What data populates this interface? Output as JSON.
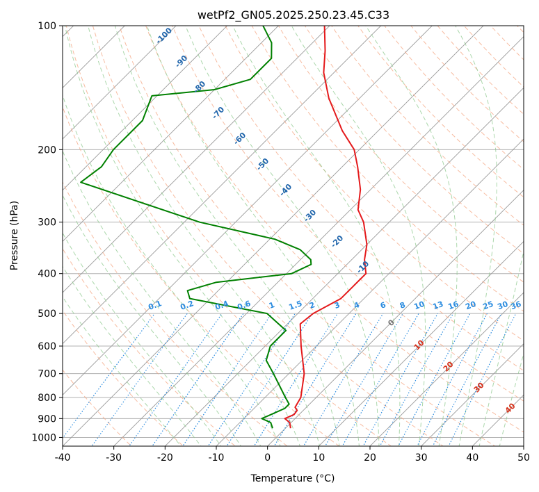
{
  "chart_data": {
    "type": "line",
    "title": "wetPf2_GN05.2025.250.23.45.C33",
    "xlabel": "Temperature (°C)",
    "ylabel": "Pressure (hPa)",
    "xlim": [
      -40,
      50
    ],
    "ylim": [
      1050,
      100
    ],
    "y_scale": "log",
    "skew": 45,
    "grid": true,
    "x_ticks": [
      -40,
      -30,
      -20,
      -10,
      0,
      10,
      20,
      30,
      40,
      50
    ],
    "y_ticks": [
      100,
      200,
      300,
      400,
      500,
      600,
      700,
      800,
      900,
      1000
    ],
    "series": [
      {
        "name": "",
        "color": "#e41a1c",
        "points": [
          {
            "p": 950,
            "t": 1.0
          },
          {
            "p": 920,
            "t": -0.3
          },
          {
            "p": 900,
            "t": -2.0
          },
          {
            "p": 880,
            "t": -1.0
          },
          {
            "p": 860,
            "t": -1.2
          },
          {
            "p": 845,
            "t": -2.2
          },
          {
            "p": 800,
            "t": -3.0
          },
          {
            "p": 700,
            "t": -7.0
          },
          {
            "p": 600,
            "t": -13.0
          },
          {
            "p": 530,
            "t": -17.5
          },
          {
            "p": 500,
            "t": -17.0
          },
          {
            "p": 460,
            "t": -14.5
          },
          {
            "p": 400,
            "t": -14.5
          },
          {
            "p": 370,
            "t": -17.5
          },
          {
            "p": 340,
            "t": -20.0
          },
          {
            "p": 300,
            "t": -25.0
          },
          {
            "p": 280,
            "t": -28.5
          },
          {
            "p": 250,
            "t": -32.0
          },
          {
            "p": 220,
            "t": -37.0
          },
          {
            "p": 200,
            "t": -41.0
          },
          {
            "p": 180,
            "t": -47.0
          },
          {
            "p": 150,
            "t": -56.0
          },
          {
            "p": 130,
            "t": -62.0
          },
          {
            "p": 115,
            "t": -66.0
          },
          {
            "p": 100,
            "t": -71.0
          }
        ]
      },
      {
        "name": "",
        "color": "#008000",
        "points": [
          {
            "p": 950,
            "t": -2.5
          },
          {
            "p": 920,
            "t": -4.0
          },
          {
            "p": 900,
            "t": -6.5
          },
          {
            "p": 880,
            "t": -5.5
          },
          {
            "p": 850,
            "t": -4.0
          },
          {
            "p": 830,
            "t": -4.0
          },
          {
            "p": 800,
            "t": -6.0
          },
          {
            "p": 700,
            "t": -13.0
          },
          {
            "p": 650,
            "t": -17.0
          },
          {
            "p": 600,
            "t": -19.0
          },
          {
            "p": 550,
            "t": -19.0
          },
          {
            "p": 500,
            "t": -26.0
          },
          {
            "p": 460,
            "t": -44.0
          },
          {
            "p": 440,
            "t": -46.0
          },
          {
            "p": 420,
            "t": -42.0
          },
          {
            "p": 400,
            "t": -29.0
          },
          {
            "p": 380,
            "t": -27.0
          },
          {
            "p": 370,
            "t": -28.0
          },
          {
            "p": 350,
            "t": -32.0
          },
          {
            "p": 330,
            "t": -39.0
          },
          {
            "p": 300,
            "t": -57.0
          },
          {
            "p": 240,
            "t": -88.0
          },
          {
            "p": 220,
            "t": -87.0
          },
          {
            "p": 200,
            "t": -88.0
          },
          {
            "p": 170,
            "t": -88.0
          },
          {
            "p": 148,
            "t": -91.0
          },
          {
            "p": 143,
            "t": -80.0
          },
          {
            "p": 135,
            "t": -75.0
          },
          {
            "p": 120,
            "t": -75.0
          },
          {
            "p": 110,
            "t": -78.0
          },
          {
            "p": 100,
            "t": -83.0
          }
        ]
      }
    ],
    "dry_adiabat_labels": [
      "-100",
      "-90",
      "-80",
      "-70",
      "-60",
      "-50",
      "-40",
      "-30",
      "-20",
      "-10",
      "0",
      "10",
      "20",
      "30",
      "40"
    ],
    "mixing_ratio_labels": [
      "0.1",
      "0.2",
      "0.4",
      "0.6",
      "1",
      "1.5",
      "2",
      "3",
      "4",
      "6",
      "8",
      "10",
      "13",
      "16",
      "20",
      "25",
      "30",
      "36"
    ]
  },
  "colors": {
    "isotherm": "#9a9a9a",
    "isobar": "#b0b0b0",
    "dry_adiabat": "#f4a582",
    "moist_adiabat": "#8fc98f",
    "mixing_ratio": "#2b8cdf",
    "label_blue": "#2166ac",
    "label_red": "#d6301a",
    "label_gray": "#777777",
    "label_mixing": "#2b8cdf"
  }
}
